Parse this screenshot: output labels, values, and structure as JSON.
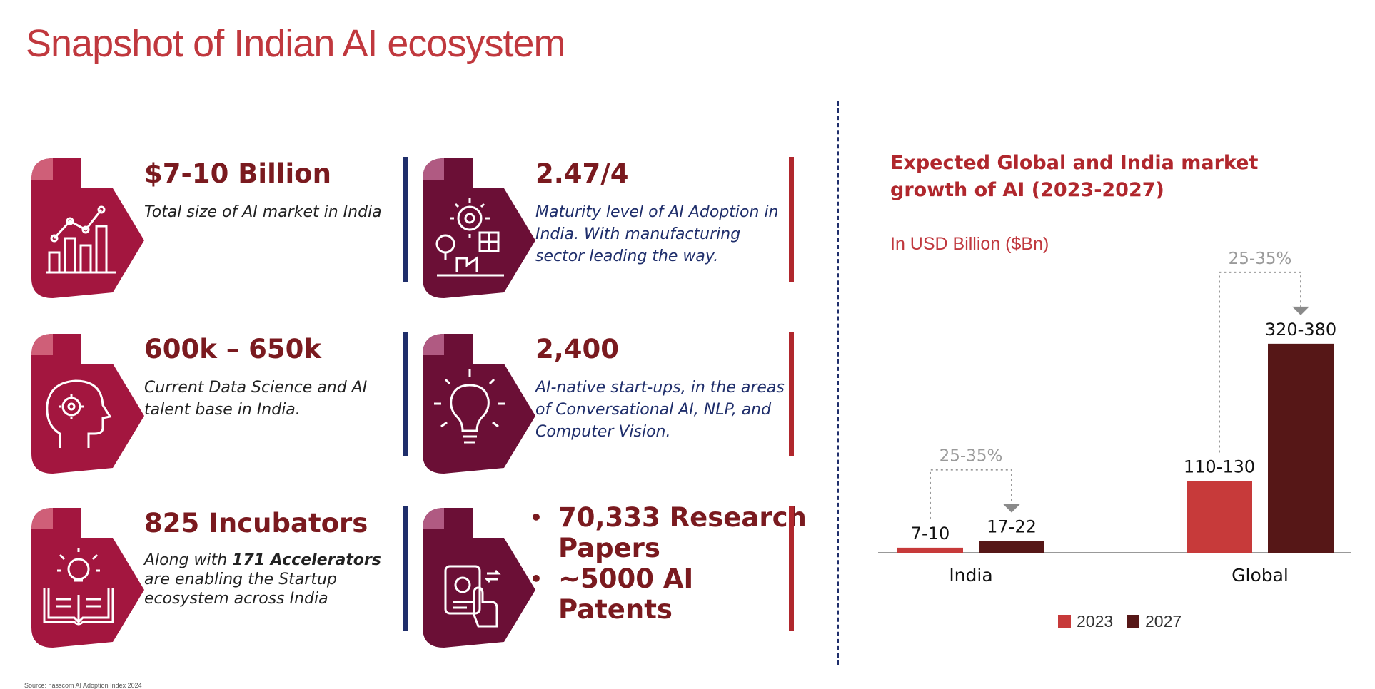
{
  "page": {
    "title": "Snapshot of Indian AI ecosystem",
    "source": "Source: nasscom AI Adoption Index 2024"
  },
  "cards": [
    {
      "value": "$7-10 Billion",
      "desc": "Total size of AI market in India",
      "icon": "bar-growth-chart-icon"
    },
    {
      "value": "2.47/4",
      "desc": "Maturity level of AI Adoption in India. With manufacturing sector leading the way.",
      "icon": "factory-gear-icon"
    },
    {
      "value": "600k – 650k",
      "desc": "Current Data Science and AI talent base in India.",
      "icon": "head-gear-icon"
    },
    {
      "value": "2,400",
      "desc": "AI-native start-ups, in the areas of Conversational AI, NLP, and Computer Vision.",
      "icon": "lightbulb-icon"
    },
    {
      "value": "825 Incubators",
      "desc_pre": "Along with ",
      "desc_bold": "171 Accelerators",
      "desc_post": " are enabling the Startup ecosystem across India",
      "icon": "book-lightbulb-icon"
    },
    {
      "bullets": [
        "70,333 Research Papers",
        "~5000 AI Patents"
      ],
      "bullet_char": "•",
      "icon": "patent-hand-icon"
    }
  ],
  "colors": {
    "title": "#c0383e",
    "value": "#7a1a1f",
    "icon_light": "#a3163f",
    "icon_dark": "#6b0f36",
    "bar_2023": "#c73a3a",
    "bar_2027": "#561717",
    "navy_bar": "#1f2e6b",
    "red_bar": "#b0272d"
  },
  "chart_data": {
    "type": "bar",
    "title": "Expected Global and India market growth of AI (2023-2027)",
    "subtitle": "In USD Billion ($Bn)",
    "categories": [
      "India",
      "Global"
    ],
    "series": [
      {
        "name": "2023",
        "values": [
          8.5,
          120
        ],
        "labels": [
          "7-10",
          "110-130"
        ],
        "color": "#c73a3a"
      },
      {
        "name": "2027",
        "values": [
          19.5,
          350
        ],
        "labels": [
          "17-22",
          "320-380"
        ],
        "color": "#561717"
      }
    ],
    "growth_annotations": [
      "25-35%",
      "25-35%"
    ],
    "ylim": [
      0,
      400
    ],
    "legend": "bottom-center",
    "grid": false
  }
}
